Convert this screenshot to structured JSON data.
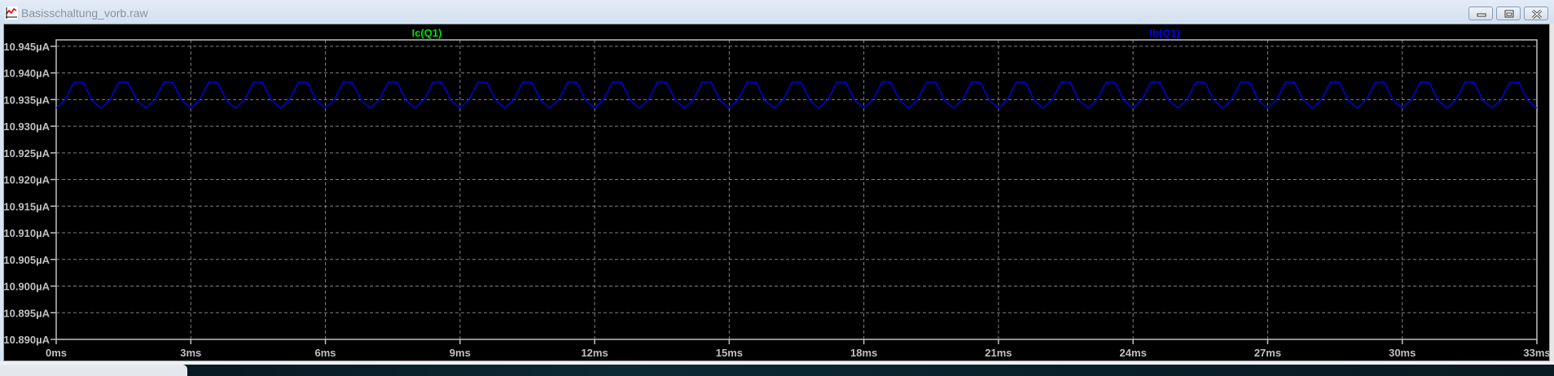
{
  "window": {
    "title": "Basisschaltung_vorb.raw",
    "icon": "waveform-viewer-icon",
    "buttons": [
      "minimize-icon",
      "maximize-icon",
      "close-icon"
    ]
  },
  "colors": {
    "background": "#000000",
    "grid": "#808080",
    "axis": "#c0c0c0",
    "ic_trace": "#00e000",
    "ib_trace": "#0000ff"
  },
  "chart_data": {
    "type": "line",
    "title": "",
    "xlabel": "",
    "ylabel": "",
    "xlim": [
      0,
      33
    ],
    "ylim": [
      10.89,
      10.9462
    ],
    "grid": true,
    "x_ticks": [
      0,
      3,
      6,
      9,
      12,
      15,
      18,
      21,
      24,
      27,
      30,
      33
    ],
    "x_tick_labels": [
      "0ms",
      "3ms",
      "6ms",
      "9ms",
      "12ms",
      "15ms",
      "18ms",
      "21ms",
      "24ms",
      "27ms",
      "30ms",
      "33ms"
    ],
    "y_ticks": [
      10.945,
      10.94,
      10.935,
      10.93,
      10.925,
      10.92,
      10.915,
      10.91,
      10.905,
      10.9,
      10.895,
      10.89
    ],
    "y_tick_labels": [
      "10.945µA",
      "10.940µA",
      "10.935µA",
      "10.930µA",
      "10.925µA",
      "10.920µA",
      "10.915µA",
      "10.910µA",
      "10.905µA",
      "10.900µA",
      "10.895µA",
      "10.890µA"
    ],
    "legend": [
      {
        "name": "Ic(Q1)",
        "color": "#00e000"
      },
      {
        "name": "Ib(Q1)",
        "color": "#0000ff"
      }
    ],
    "series": [
      {
        "name": "Ib(Q1)",
        "color": "#0000ff",
        "x": [
          0,
          0.2,
          0.4,
          0.6,
          0.8,
          1,
          1.2,
          1.4,
          1.6,
          1.8,
          2,
          2.2,
          2.4,
          2.6,
          2.8,
          3,
          3.2,
          3.4,
          3.6,
          3.8,
          4,
          4.2,
          4.4,
          4.6,
          4.8,
          5,
          5.2,
          5.4,
          5.6,
          5.8,
          6,
          6.2,
          6.4,
          6.6,
          6.8,
          7,
          7.2,
          7.4,
          7.6,
          7.8,
          8,
          8.2,
          8.4,
          8.6,
          8.8,
          9,
          9.2,
          9.4,
          9.6,
          9.8,
          10,
          10.2,
          10.4,
          10.6,
          10.8,
          11,
          11.2,
          11.4,
          11.6,
          11.8,
          12,
          12.2,
          12.4,
          12.6,
          12.8,
          13,
          13.2,
          13.4,
          13.6,
          13.8,
          14,
          14.2,
          14.4,
          14.6,
          14.8,
          15,
          15.2,
          15.4,
          15.6,
          15.8,
          16,
          16.2,
          16.4,
          16.6,
          16.8,
          17,
          17.2,
          17.4,
          17.6,
          17.8,
          18,
          18.2,
          18.4,
          18.6,
          18.8,
          19,
          19.2,
          19.4,
          19.6,
          19.8,
          20,
          20.2,
          20.4,
          20.6,
          20.8,
          21,
          21.2,
          21.4,
          21.6,
          21.8,
          22,
          22.2,
          22.4,
          22.6,
          22.8,
          23,
          23.2,
          23.4,
          23.6,
          23.8,
          24,
          24.2,
          24.4,
          24.6,
          24.8,
          25,
          25.2,
          25.4,
          25.6,
          25.8,
          26,
          26.2,
          26.4,
          26.6,
          26.8,
          27,
          27.2,
          27.4,
          27.6,
          27.8,
          28,
          28.2,
          28.4,
          28.6,
          28.8,
          29,
          29.2,
          29.4,
          29.6,
          29.8,
          30,
          30.2,
          30.4,
          30.6,
          30.8,
          31,
          31.2,
          31.4,
          31.6,
          31.8,
          32,
          32.2,
          32.4,
          32.6,
          32.8,
          33
        ],
        "y": [
          10.9334,
          10.935,
          10.9383,
          10.9382,
          10.9348,
          10.9334,
          10.935,
          10.9383,
          10.9382,
          10.9348,
          10.9334,
          10.935,
          10.9383,
          10.9382,
          10.9348,
          10.9334,
          10.935,
          10.9383,
          10.9382,
          10.9348,
          10.9334,
          10.935,
          10.9383,
          10.9382,
          10.9348,
          10.9334,
          10.935,
          10.9383,
          10.9382,
          10.9348,
          10.9334,
          10.935,
          10.9383,
          10.9382,
          10.9348,
          10.9334,
          10.935,
          10.9383,
          10.9382,
          10.9348,
          10.9334,
          10.935,
          10.9383,
          10.9382,
          10.9348,
          10.9334,
          10.935,
          10.9383,
          10.9382,
          10.9348,
          10.9334,
          10.935,
          10.9383,
          10.9382,
          10.9348,
          10.9334,
          10.935,
          10.9383,
          10.9382,
          10.9348,
          10.9334,
          10.935,
          10.9383,
          10.9382,
          10.9348,
          10.9334,
          10.935,
          10.9383,
          10.9382,
          10.9348,
          10.9334,
          10.935,
          10.9383,
          10.9382,
          10.9348,
          10.9334,
          10.935,
          10.9383,
          10.9382,
          10.9348,
          10.9334,
          10.935,
          10.9383,
          10.9382,
          10.9348,
          10.9334,
          10.935,
          10.9383,
          10.9382,
          10.9348,
          10.9334,
          10.935,
          10.9383,
          10.9382,
          10.9348,
          10.9334,
          10.935,
          10.9383,
          10.9382,
          10.9348,
          10.9334,
          10.935,
          10.9383,
          10.9382,
          10.9348,
          10.9334,
          10.935,
          10.9383,
          10.9382,
          10.9348,
          10.9334,
          10.935,
          10.9383,
          10.9382,
          10.9348,
          10.9334,
          10.935,
          10.9383,
          10.9382,
          10.9348,
          10.9334,
          10.935,
          10.9383,
          10.9382,
          10.9348,
          10.9334,
          10.935,
          10.9383,
          10.9382,
          10.9348,
          10.9334,
          10.935,
          10.9383,
          10.9382,
          10.9348,
          10.9334,
          10.935,
          10.9383,
          10.9382,
          10.9348,
          10.9334,
          10.935,
          10.9383,
          10.9382,
          10.9348,
          10.9334,
          10.935,
          10.9383,
          10.9382,
          10.9348,
          10.9334,
          10.935,
          10.9383,
          10.9382,
          10.9348,
          10.9334,
          10.935,
          10.9383,
          10.9382,
          10.9348,
          10.9334,
          10.935,
          10.9383,
          10.9382,
          10.9348,
          10.9334
        ]
      }
    ]
  }
}
